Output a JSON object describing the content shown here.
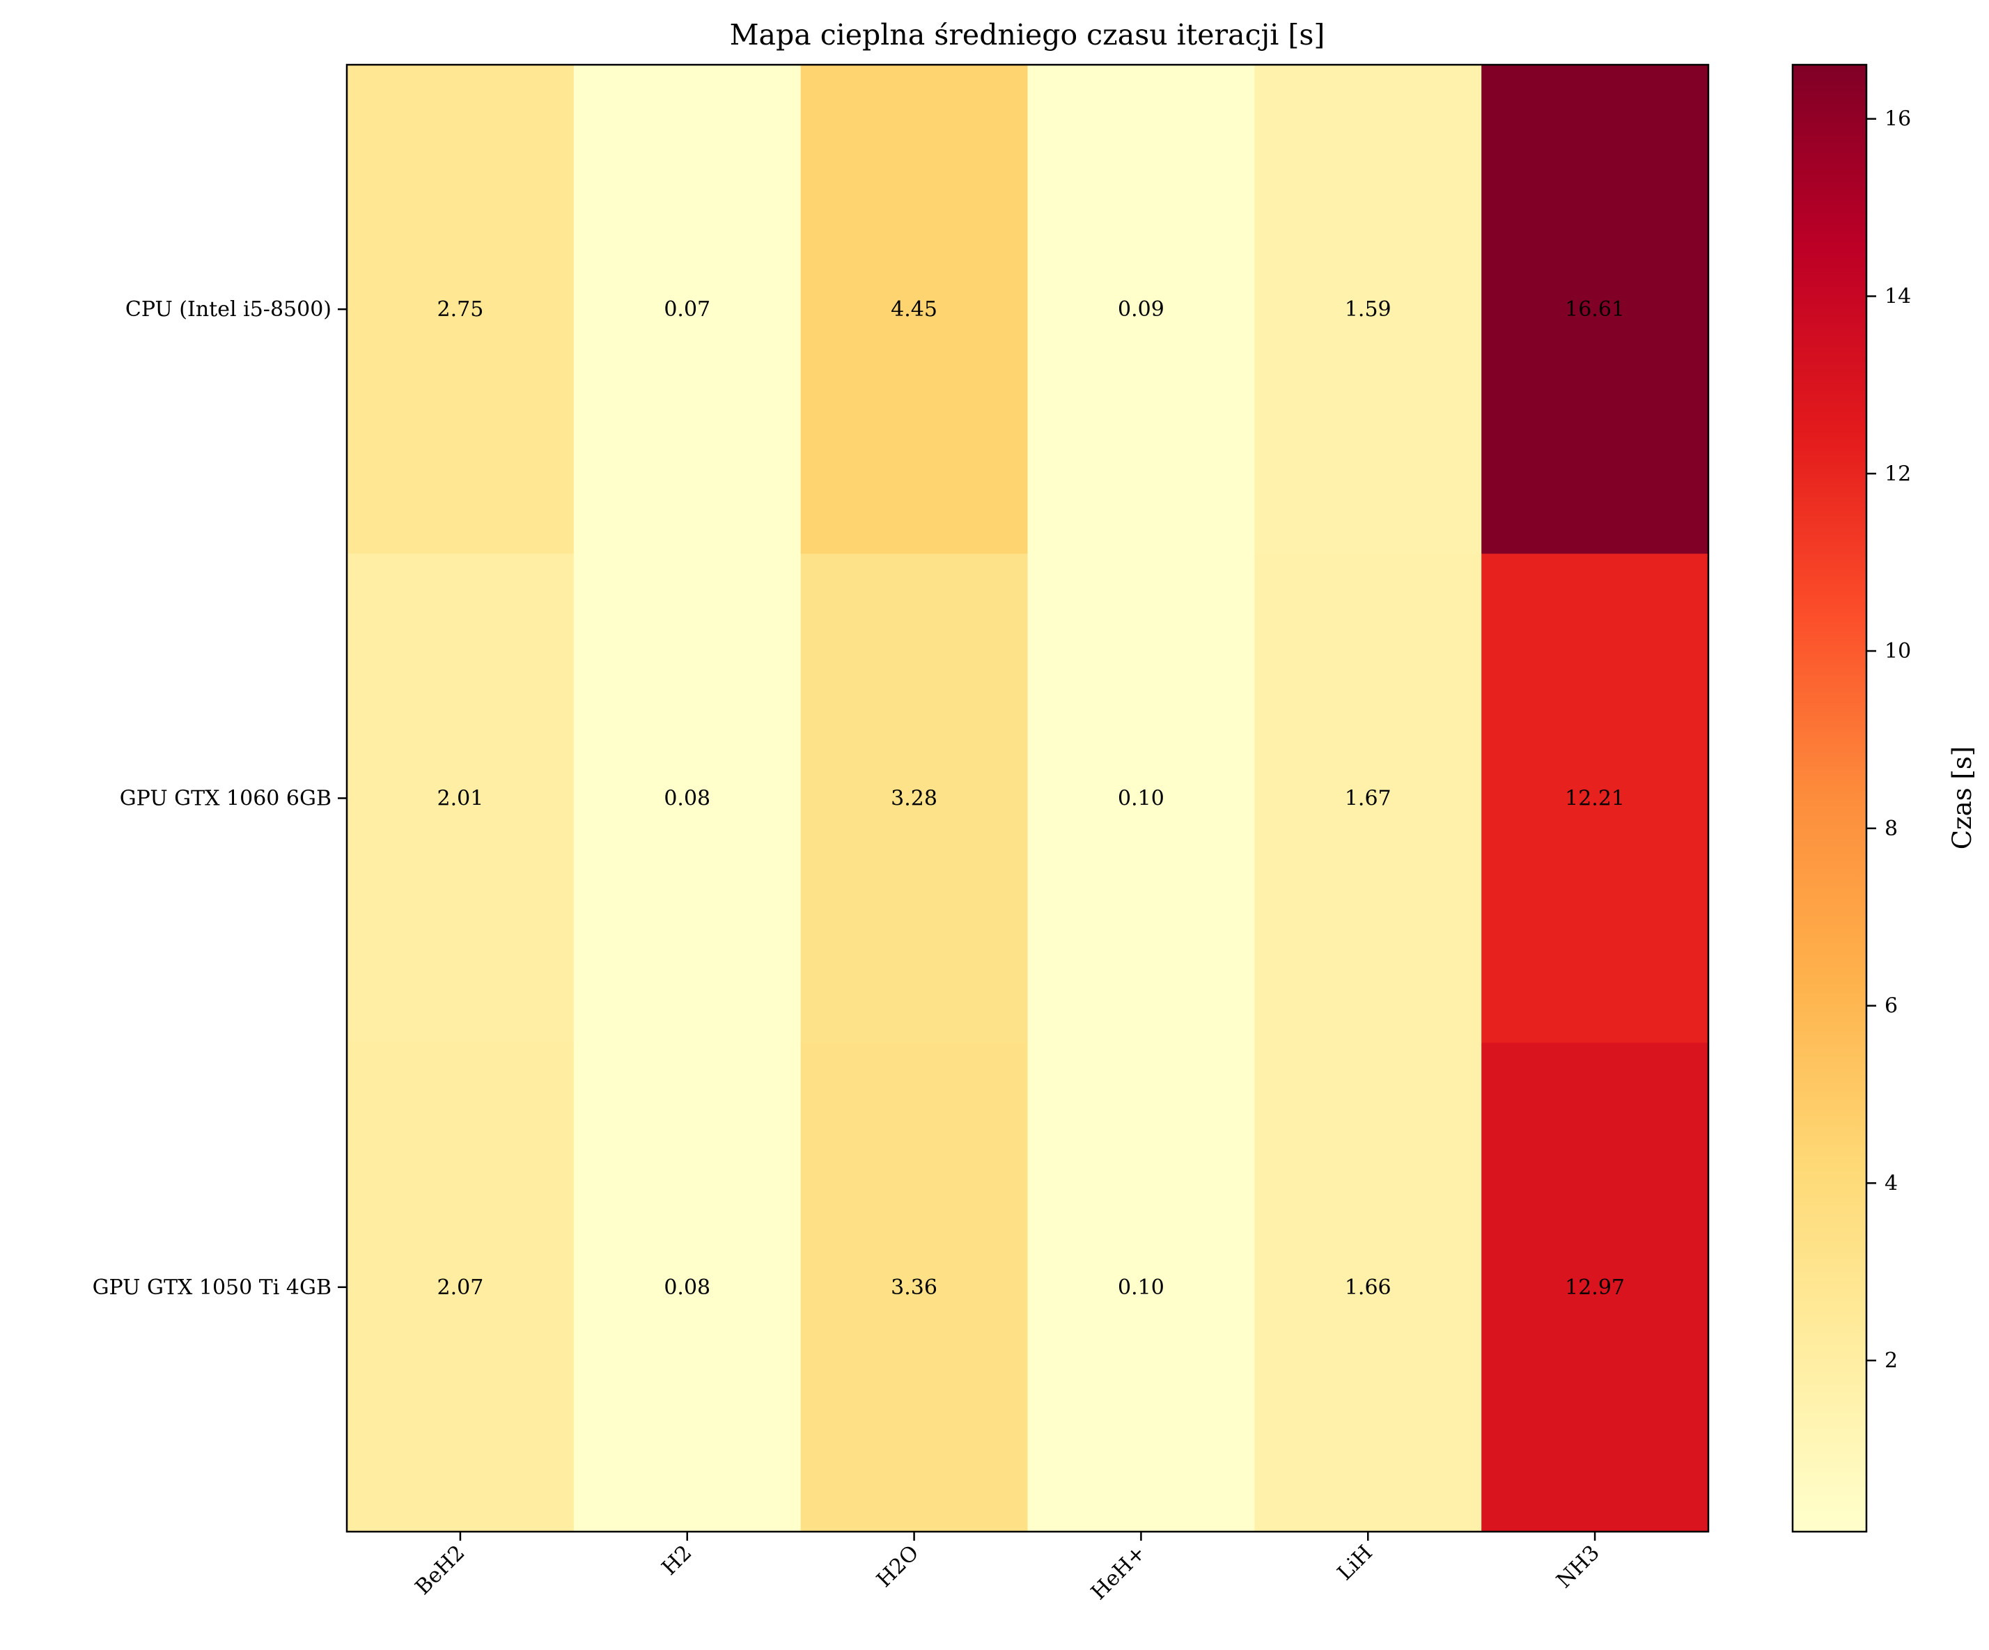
{
  "chart_data": {
    "type": "heatmap",
    "title": "Mapa cieplna średniego czasu iteracji [s]",
    "x_categories": [
      "BeH2",
      "H2",
      "H2O",
      "HeH+",
      "LiH",
      "NH3"
    ],
    "y_categories": [
      "CPU (Intel i5-8500)",
      "GPU GTX 1060 6GB",
      "GPU GTX 1050 Ti 4GB"
    ],
    "values": [
      [
        2.75,
        0.07,
        4.45,
        0.09,
        1.59,
        16.61
      ],
      [
        2.01,
        0.08,
        3.28,
        0.1,
        1.67,
        12.21
      ],
      [
        2.07,
        0.08,
        3.36,
        0.1,
        1.66,
        12.97
      ]
    ],
    "value_labels": [
      [
        "2.75",
        "0.07",
        "4.45",
        "0.09",
        "1.59",
        "16.61"
      ],
      [
        "2.01",
        "0.08",
        "3.28",
        "0.10",
        "1.67",
        "12.21"
      ],
      [
        "2.07",
        "0.08",
        "3.36",
        "0.10",
        "1.66",
        "12.97"
      ]
    ],
    "colormap": "YlOrRd",
    "colormap_stops": [
      "#ffffcc",
      "#ffeda0",
      "#fed976",
      "#feb24c",
      "#fd8d3c",
      "#fc4e2a",
      "#e31a1c",
      "#bd0026",
      "#800026"
    ],
    "colorbar": {
      "label": "Czas [s]",
      "range": [
        0.07,
        16.61
      ],
      "ticks": [
        2,
        4,
        6,
        8,
        10,
        12,
        14,
        16
      ],
      "tick_labels": [
        "2",
        "4",
        "6",
        "8",
        "10",
        "12",
        "14",
        "16"
      ]
    },
    "grid": false
  }
}
